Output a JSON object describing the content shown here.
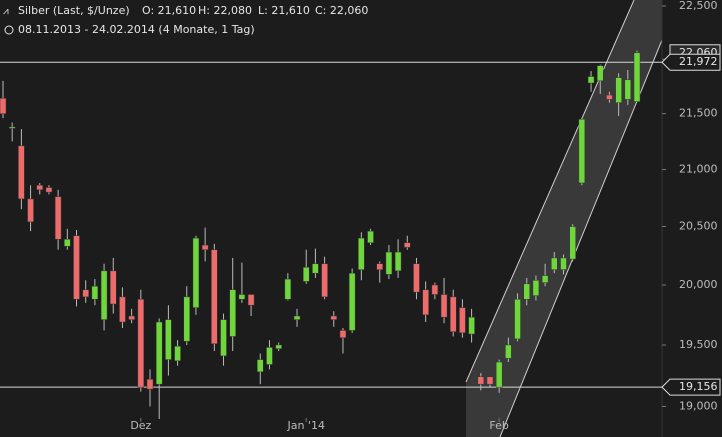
{
  "chart_data": {
    "type": "candlestick",
    "title": "Silber (Last, $/Unze)",
    "ohlc_text": [
      "O: 21,610",
      "H: 22,080",
      "L: 21,610",
      "C: 22,060"
    ],
    "subtitle": "08.11.2013 - 24.02.2014 (4 Monate, 1 Tag)",
    "categories": [
      null,
      null,
      null,
      null,
      null,
      null,
      null,
      null,
      null,
      null,
      null,
      null,
      null,
      null,
      null,
      "Dez",
      null,
      null,
      null,
      null,
      null,
      null,
      null,
      null,
      null,
      null,
      null,
      null,
      null,
      null,
      null,
      null,
      null,
      "Jan '14",
      null,
      null,
      null,
      null,
      null,
      null,
      null,
      null,
      null,
      null,
      null,
      null,
      null,
      null,
      null,
      null,
      null,
      null,
      null,
      null,
      "Feb",
      null,
      null,
      null,
      null,
      null,
      null,
      null,
      null,
      null,
      null,
      null,
      null,
      null,
      null,
      null
    ],
    "open": [
      21640,
      21370,
      21210,
      20740,
      20860,
      20840,
      20760,
      20330,
      20420,
      19960,
      19880,
      19710,
      20120,
      19900,
      19740,
      19880,
      19220,
      19180,
      19380,
      19370,
      19530,
      19810,
      20340,
      20300,
      19410,
      19570,
      19880,
      19920,
      19280,
      19340,
      19470,
      19880,
      19710,
      20030,
      20100,
      20180,
      19740,
      19620,
      19620,
      20130,
      20360,
      20180,
      20090,
      20120,
      20360,
      20180,
      19960,
      20000,
      19920,
      19900,
      19810,
      19590,
      19240,
      19240,
      19156,
      19390,
      19550,
      19880,
      19910,
      20020,
      20130,
      20130,
      20220,
      20880,
      21780,
      21800,
      21670,
      21600,
      21630,
      21610
    ],
    "high": [
      21800,
      21420,
      21360,
      20860,
      20880,
      20860,
      20820,
      20480,
      20470,
      20040,
      20050,
      20180,
      20230,
      19980,
      19800,
      19960,
      19300,
      19720,
      19830,
      19540,
      19990,
      20420,
      20490,
      20350,
      19760,
      20230,
      20190,
      19920,
      19430,
      19540,
      19520,
      20100,
      19800,
      20300,
      20310,
      20240,
      19780,
      19640,
      20140,
      20450,
      20480,
      20200,
      20340,
      20390,
      20420,
      20230,
      20030,
      20020,
      20060,
      19960,
      19880,
      19800,
      19270,
      19240,
      19380,
      19560,
      19930,
      20060,
      20080,
      20180,
      20280,
      20260,
      20520,
      21460,
      21890,
      21950,
      21700,
      21870,
      21900,
      22080
    ],
    "low": [
      21460,
      21250,
      20650,
      20460,
      20780,
      20780,
      20300,
      20300,
      19820,
      19850,
      19830,
      19620,
      19760,
      19640,
      19680,
      19120,
      19000,
      18900,
      19250,
      19330,
      19500,
      19750,
      20200,
      19450,
      19330,
      19450,
      19850,
      19740,
      19180,
      19300,
      19450,
      19870,
      19650,
      20010,
      20060,
      19880,
      19650,
      19430,
      19600,
      20040,
      20340,
      20020,
      20050,
      20060,
      20300,
      19880,
      19690,
      19880,
      19680,
      19570,
      19560,
      19520,
      19130,
      19150,
      19110,
      19360,
      19530,
      19830,
      19870,
      19990,
      20100,
      20090,
      20200,
      20860,
      21700,
      21680,
      21600,
      21480,
      21580,
      21610
    ],
    "close": [
      21500,
      21380,
      20740,
      20540,
      20820,
      20800,
      20390,
      20390,
      19880,
      19900,
      19990,
      20120,
      19840,
      19690,
      19710,
      19156,
      19140,
      19690,
      19710,
      19490,
      19900,
      20400,
      20300,
      19510,
      19710,
      19960,
      19920,
      19830,
      19380,
      19480,
      19500,
      20050,
      19740,
      20150,
      20180,
      19900,
      19710,
      19560,
      20100,
      20400,
      20460,
      20130,
      20280,
      20280,
      20320,
      19940,
      19750,
      19920,
      19730,
      19610,
      19600,
      19730,
      19180,
      19180,
      19360,
      19500,
      19880,
      20010,
      20040,
      20080,
      20230,
      20230,
      20500,
      21450,
      21840,
      21940,
      21630,
      21830,
      21810,
      22060
    ],
    "up_color": "#6fd63c",
    "down_color": "#ee6b6b",
    "log_scale": true,
    "ylim": [
      18757,
      22557
    ],
    "yticks": [
      {
        "value": 19000,
        "label": "19,000"
      },
      {
        "value": 19500,
        "label": "19,500"
      },
      {
        "value": 20000,
        "label": "20,000"
      },
      {
        "value": 20500,
        "label": "20,500"
      },
      {
        "value": 21000,
        "label": "21,000"
      },
      {
        "value": 21500,
        "label": "21,500"
      },
      {
        "value": 22000,
        "label": "22,000"
      },
      {
        "value": 22500,
        "label": "22,500"
      }
    ],
    "last_price": {
      "value": 22060,
      "label": "22,060"
    },
    "hlines": [
      {
        "value": 21972,
        "label": "21,972"
      },
      {
        "value": 19156,
        "label": "19,156"
      }
    ]
  }
}
